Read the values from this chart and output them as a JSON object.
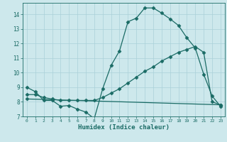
{
  "xlabel": "Humidex (Indice chaleur)",
  "bg_color": "#cde8ec",
  "line_color": "#1a6b65",
  "grid_color": "#aad0d8",
  "spine_color": "#1a6b65",
  "xlim": [
    -0.5,
    23.5
  ],
  "ylim": [
    7,
    14.8
  ],
  "yticks": [
    7,
    8,
    9,
    10,
    11,
    12,
    13,
    14
  ],
  "xticks": [
    0,
    1,
    2,
    3,
    4,
    5,
    6,
    7,
    8,
    9,
    10,
    11,
    12,
    13,
    14,
    15,
    16,
    17,
    18,
    19,
    20,
    21,
    22,
    23
  ],
  "curve1_x": [
    0,
    1,
    2,
    3,
    4,
    5,
    6,
    7,
    8,
    9,
    10,
    11,
    12,
    13,
    14,
    15,
    16,
    17,
    18,
    19,
    20,
    21,
    22,
    23
  ],
  "curve1_y": [
    9.0,
    8.7,
    8.1,
    8.1,
    7.7,
    7.75,
    7.5,
    7.3,
    6.85,
    8.9,
    10.5,
    11.5,
    13.5,
    13.75,
    14.45,
    14.45,
    14.1,
    13.7,
    13.25,
    12.4,
    11.7,
    9.9,
    8.4,
    7.7
  ],
  "curve2_x": [
    0,
    1,
    2,
    3,
    4,
    5,
    6,
    7,
    8,
    9,
    10,
    11,
    12,
    13,
    14,
    15,
    16,
    17,
    18,
    19,
    20,
    21,
    22,
    23
  ],
  "curve2_y": [
    8.5,
    8.5,
    8.3,
    8.2,
    8.1,
    8.1,
    8.1,
    8.1,
    8.1,
    8.3,
    8.6,
    8.9,
    9.3,
    9.7,
    10.1,
    10.4,
    10.8,
    11.1,
    11.4,
    11.6,
    11.8,
    11.4,
    8.0,
    7.8
  ],
  "curve3_x": [
    0,
    23
  ],
  "curve3_y": [
    8.2,
    7.8
  ],
  "marker": "D",
  "markersize": 2.5,
  "lw": 0.9
}
